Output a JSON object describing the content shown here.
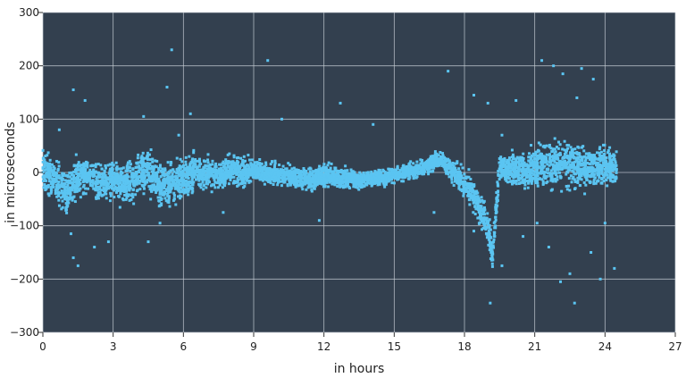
{
  "chart_data": {
    "type": "scatter",
    "title": "",
    "xlabel": "in hours",
    "ylabel": "in microseconds",
    "xlim": [
      0,
      27
    ],
    "ylim": [
      -300,
      300
    ],
    "x_ticks": [
      "0",
      "3",
      "6",
      "9",
      "12",
      "15",
      "18",
      "21",
      "24",
      "27"
    ],
    "y_ticks": [
      "300",
      "200",
      "100",
      "0",
      "−100",
      "−200",
      "−300"
    ],
    "grid": true,
    "legend": "none",
    "colors": {
      "plot_background": "#33404f",
      "points": "#5bc5f2",
      "grid": "#c5ccd4"
    },
    "series": [
      {
        "trend_x": [
          0,
          0.5,
          1,
          1.5,
          2,
          2.5,
          3,
          3.5,
          4,
          4.5,
          5,
          5.5,
          6,
          6.5,
          7,
          7.5,
          8,
          8.5,
          9,
          9.5,
          10,
          10.5,
          11,
          11.5,
          12,
          12.5,
          13,
          13.5,
          14,
          14.5,
          15,
          15.5,
          16,
          16.5,
          17,
          17.5,
          18,
          18.5,
          19,
          19.2,
          19.5,
          20,
          20.5,
          21,
          21.5,
          22,
          22.5,
          23,
          23.5,
          24,
          24.5
        ],
        "trend_y": [
          10,
          -15,
          -40,
          -10,
          -5,
          -20,
          -15,
          -25,
          -10,
          5,
          -30,
          -15,
          -15,
          5,
          -5,
          -5,
          5,
          0,
          5,
          0,
          -5,
          -5,
          -10,
          -15,
          -5,
          -10,
          -10,
          -15,
          -10,
          -10,
          -5,
          0,
          5,
          15,
          25,
          0,
          -20,
          -50,
          -100,
          -155,
          10,
          5,
          5,
          10,
          15,
          20,
          15,
          10,
          10,
          10,
          5
        ],
        "spread": [
          40,
          35,
          45,
          35,
          30,
          35,
          35,
          40,
          35,
          40,
          45,
          40,
          35,
          35,
          30,
          25,
          30,
          25,
          20,
          20,
          20,
          20,
          20,
          20,
          20,
          20,
          20,
          15,
          15,
          15,
          15,
          15,
          15,
          15,
          15,
          20,
          25,
          30,
          35,
          25,
          25,
          30,
          35,
          40,
          45,
          50,
          45,
          45,
          40,
          40,
          35
        ],
        "outliers": [
          [
            0.7,
            80
          ],
          [
            1.3,
            155
          ],
          [
            1.8,
            135
          ],
          [
            4.3,
            105
          ],
          [
            5.3,
            160
          ],
          [
            5.5,
            230
          ],
          [
            5.8,
            70
          ],
          [
            6.3,
            110
          ],
          [
            9.6,
            210
          ],
          [
            10.2,
            100
          ],
          [
            12.7,
            130
          ],
          [
            14.1,
            90
          ],
          [
            17.3,
            190
          ],
          [
            18.4,
            145
          ],
          [
            19.0,
            130
          ],
          [
            19.6,
            70
          ],
          [
            20.2,
            135
          ],
          [
            21.3,
            210
          ],
          [
            21.8,
            200
          ],
          [
            22.2,
            185
          ],
          [
            22.8,
            140
          ],
          [
            23.0,
            195
          ],
          [
            23.5,
            175
          ],
          [
            1.2,
            -115
          ],
          [
            1.3,
            -160
          ],
          [
            1.5,
            -175
          ],
          [
            2.2,
            -140
          ],
          [
            2.8,
            -130
          ],
          [
            4.5,
            -130
          ],
          [
            5.0,
            -95
          ],
          [
            7.7,
            -75
          ],
          [
            11.8,
            -90
          ],
          [
            16.7,
            -75
          ],
          [
            18.4,
            -110
          ],
          [
            19.1,
            -245
          ],
          [
            19.6,
            -175
          ],
          [
            20.5,
            -120
          ],
          [
            21.1,
            -95
          ],
          [
            21.6,
            -140
          ],
          [
            22.1,
            -205
          ],
          [
            22.5,
            -190
          ],
          [
            22.7,
            -245
          ],
          [
            23.4,
            -150
          ],
          [
            23.8,
            -200
          ],
          [
            24.4,
            -180
          ],
          [
            24.0,
            -95
          ]
        ]
      }
    ]
  }
}
